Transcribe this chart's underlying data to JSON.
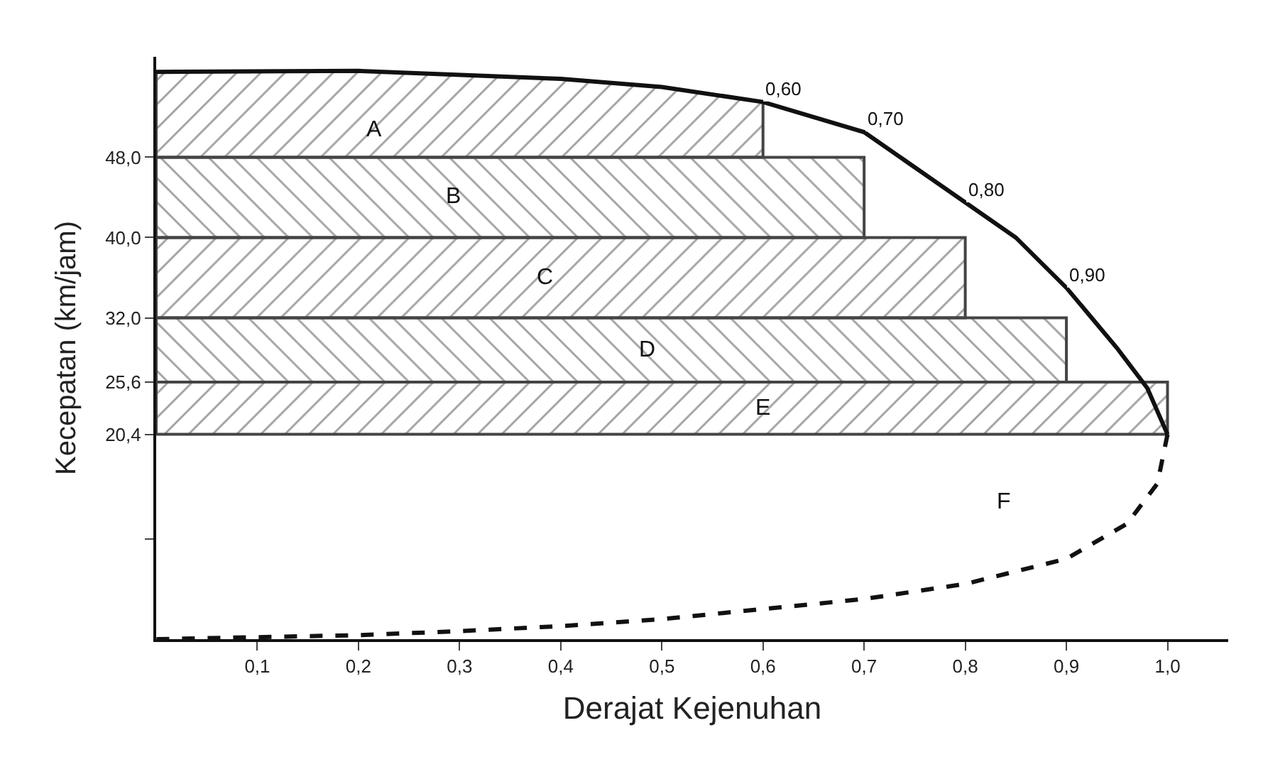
{
  "chart_data": {
    "type": "line",
    "xlabel": "Derajat Kejenuhan",
    "ylabel": "Kecepatan (km/jam)",
    "xlim": [
      0,
      1.06
    ],
    "ylim": [
      0,
      58
    ],
    "xticks": [
      {
        "value": 0.1,
        "label": "0,1"
      },
      {
        "value": 0.2,
        "label": "0,2"
      },
      {
        "value": 0.3,
        "label": "0,3"
      },
      {
        "value": 0.4,
        "label": "0,4"
      },
      {
        "value": 0.5,
        "label": "0,5"
      },
      {
        "value": 0.6,
        "label": "0,6"
      },
      {
        "value": 0.7,
        "label": "0,7"
      },
      {
        "value": 0.8,
        "label": "0,8"
      },
      {
        "value": 0.9,
        "label": "0,9"
      },
      {
        "value": 1.0,
        "label": "1,0"
      }
    ],
    "yticks": [
      {
        "value": 10,
        "label": null
      },
      {
        "value": 20.4,
        "label": "20,4"
      },
      {
        "value": 25.6,
        "label": "25,6"
      },
      {
        "value": 32.0,
        "label": "32,0"
      },
      {
        "value": 40.0,
        "label": "40,0"
      },
      {
        "value": 48.0,
        "label": "48,0"
      }
    ],
    "series": [
      {
        "type": "area",
        "name": "E",
        "color": "#444444",
        "x": [
          0,
          1.0,
          1.0,
          0,
          0
        ],
        "values": [
          20.4,
          20.4,
          25.6,
          25.6,
          20.4
        ]
      },
      {
        "type": "area",
        "name": "D",
        "color": "#444444",
        "x": [
          0,
          0.9,
          0.9,
          0,
          0
        ],
        "values": [
          25.6,
          25.6,
          32.0,
          32.0,
          25.6
        ]
      },
      {
        "type": "area",
        "name": "C",
        "color": "#444444",
        "x": [
          0,
          0.8,
          0.8,
          0,
          0
        ],
        "values": [
          32.0,
          32.0,
          40.0,
          40.0,
          32.0
        ]
      },
      {
        "type": "area",
        "name": "B",
        "color": "#444444",
        "x": [
          0,
          0.7,
          0.7,
          0,
          0
        ],
        "values": [
          40.0,
          40.0,
          48.0,
          48.0,
          40.0
        ]
      },
      {
        "type": "area",
        "name": "A",
        "color": "#444444",
        "x": [
          0,
          0.6,
          0.6,
          0.5,
          0.4,
          0.2,
          0,
          0
        ],
        "values": [
          48.0,
          48.0,
          53.5,
          55.0,
          55.8,
          56.6,
          56.5,
          48.0
        ]
      },
      {
        "color": "#111111",
        "line_style": "solid",
        "x": [
          0,
          0.2,
          0.4,
          0.5,
          0.6,
          0.7,
          0.8,
          0.85,
          0.9,
          0.95,
          0.98,
          1.0
        ],
        "values": [
          56.5,
          56.6,
          55.8,
          55.0,
          53.5,
          50.5,
          43.5,
          40.0,
          35.0,
          29.0,
          25.0,
          20.4
        ]
      },
      {
        "color": "#111111",
        "line_style": "dashed",
        "x": [
          1.0,
          0.99,
          0.96,
          0.9,
          0.8,
          0.7,
          0.6,
          0.5,
          0.4,
          0.3,
          0.2,
          0.1,
          0
        ],
        "values": [
          20.4,
          15.5,
          11.5,
          8.0,
          5.5,
          4.0,
          3.0,
          2.0,
          1.3,
          0.8,
          0.4,
          0.2,
          0
        ]
      }
    ],
    "annotations": [
      "F",
      {
        "text": "0,60",
        "x": 0.6,
        "y": 53.5
      },
      {
        "text": "0,70",
        "x": 0.7,
        "y": 50.5
      },
      {
        "text": "0,80",
        "x": 0.8,
        "y": 43.5
      },
      {
        "text": "0,90",
        "x": 0.9,
        "y": 35.0
      }
    ],
    "tick_labels": true
  }
}
